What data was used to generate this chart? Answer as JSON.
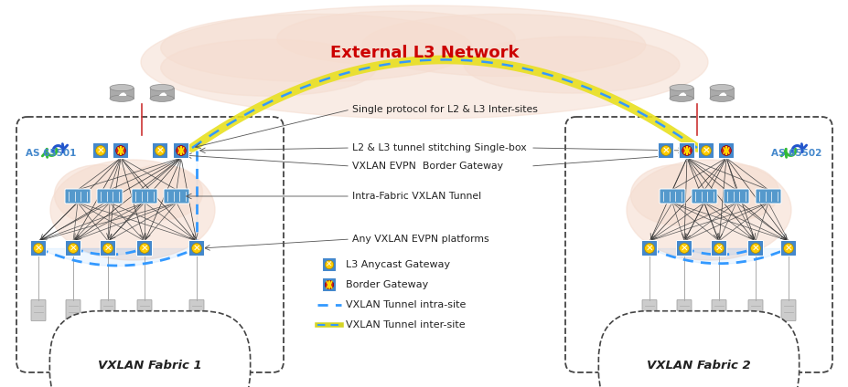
{
  "title": "External L3 Network",
  "title_color": "#cc0000",
  "bg_color": "#ffffff",
  "fabric1_label": "VXLAN Fabric 1",
  "fabric2_label": "VXLAN Fabric 2",
  "as1_label": "AS 65501",
  "as2_label": "AS 65502",
  "annotation_lines": [
    "Single protocol for L2 & L3 Inter-sites",
    "L2 & L3 tunnel stitching Single-box",
    "VXLAN EVPN  Border Gateway",
    "Intra-Fabric VXLAN Tunnel",
    "Any VXLAN EVPN platforms"
  ],
  "cloud_color": "#f5ddd0",
  "blue_tunnel_color": "#3399ff",
  "yellow_line_color": "#dddd00",
  "spine_color": "#5599cc",
  "border_gw_red": "#dd2222",
  "border_gw_yellow": "#ffcc00",
  "anycast_yellow": "#ffcc00",
  "router_color": "#aaaaaa",
  "green_color": "#33aa33",
  "blue_arrow_color": "#2255cc",
  "dark_line": "#444444",
  "red_line": "#cc3333"
}
